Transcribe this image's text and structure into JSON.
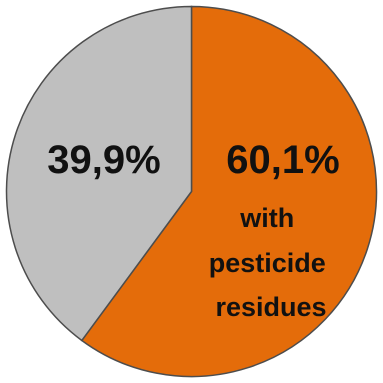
{
  "chart_data": {
    "type": "pie",
    "title": "",
    "start_angle_deg": 0,
    "direction": "clockwise",
    "slices": [
      {
        "value": 60.1,
        "label": "60,1%",
        "annotation": [
          "with",
          "pesticide",
          "residues"
        ],
        "color": "#e46c0a"
      },
      {
        "value": 39.9,
        "label": "39,9%",
        "annotation": [],
        "color": "#bfbfbf"
      }
    ]
  }
}
